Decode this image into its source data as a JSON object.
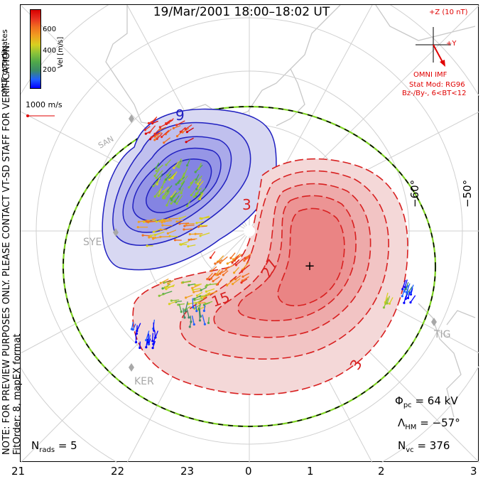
{
  "title": "19/Mar/2001  18:00–18:02  UT",
  "notes": {
    "line1": "NOTE: FOR PREVIEW PURPOSES ONLY. PLEASE CONTACT VT-SD STAFF FOR VERIFICATION.",
    "line2": "FitOrder: 8, mapEX format"
  },
  "coords_label": "MLT coordinates",
  "colorbar": {
    "label": "Vel [m/s]",
    "ticks": [
      "600",
      "400",
      "200"
    ],
    "colors": [
      "#0000ff",
      "#2060ff",
      "#3a8a6a",
      "#4fa84a",
      "#8ac23a",
      "#d8d020",
      "#f0a020",
      "#f07020",
      "#e83020",
      "#d80000"
    ]
  },
  "scale_vector": "1000 m/s",
  "imf": {
    "z_label": "+Z (10 nT)",
    "y_label": "+Y",
    "source": "OMNI IMF",
    "model": "Stat Mod: RG96",
    "condition": "Bz-/By-, 6<BT<12"
  },
  "latitude_labels": [
    "−60°",
    "−50°"
  ],
  "contour_labels": [
    "9",
    "3",
    "27",
    "15",
    "3"
  ],
  "stations": [
    "SYE",
    "TIG",
    "KER",
    "SAN"
  ],
  "mlt_ticks": [
    "21",
    "22",
    "23",
    "0",
    "1",
    "2",
    "3"
  ],
  "stats": {
    "phi_pc": {
      "symbol": "Φ",
      "sub": "pc",
      "value": "= 64 kV"
    },
    "lambda_hm": {
      "symbol": "Λ",
      "sub": "HM",
      "value": "= −57°"
    },
    "n_vc": {
      "symbol": "N",
      "sub": "vc",
      "value": "= 376"
    },
    "n_rads": {
      "symbol": "N",
      "sub": "rads",
      "value": "= 5"
    }
  },
  "colors": {
    "negative_cell": "#3030c0",
    "positive_cell": "#d82020",
    "boundary_dash": "#7ed321"
  }
}
